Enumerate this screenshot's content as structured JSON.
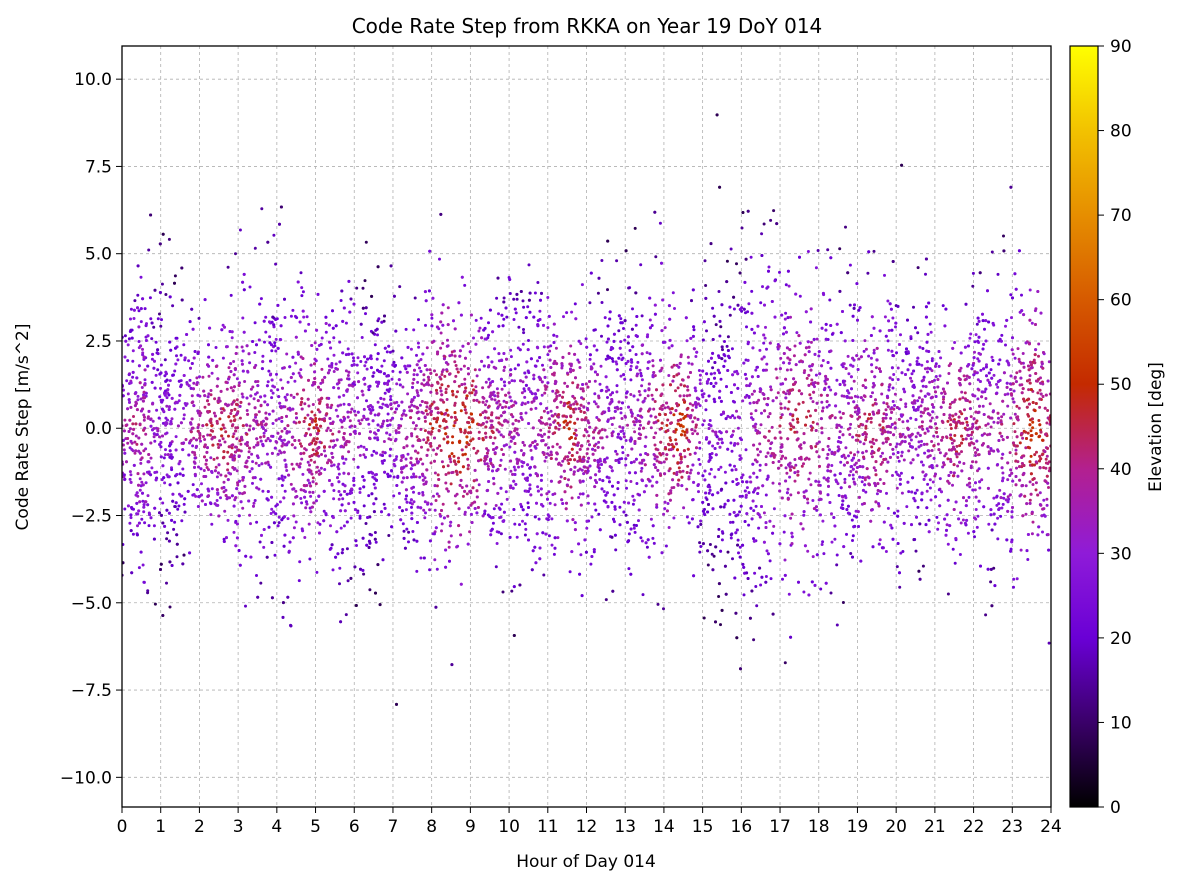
{
  "chart_data": {
    "type": "scatter",
    "title": "Code Rate Step from RKKA on Year 19 DoY 014",
    "xlabel": "Hour of Day 014",
    "ylabel": "Code Rate Step [m/s^2]",
    "xlim": [
      0,
      24
    ],
    "ylim": [
      -10.85,
      10.95
    ],
    "x_ticks": [
      0,
      1,
      2,
      3,
      4,
      5,
      6,
      7,
      8,
      9,
      10,
      11,
      12,
      13,
      14,
      15,
      16,
      17,
      18,
      19,
      20,
      21,
      22,
      23,
      24
    ],
    "x_tick_labels": [
      "0",
      "1",
      "2",
      "3",
      "4",
      "5",
      "6",
      "7",
      "8",
      "9",
      "10",
      "11",
      "12",
      "13",
      "14",
      "15",
      "16",
      "17",
      "18",
      "19",
      "20",
      "21",
      "22",
      "23",
      "24"
    ],
    "y_ticks": [
      -10,
      -7.5,
      -5,
      -2.5,
      0,
      2.5,
      5,
      7.5,
      10
    ],
    "y_tick_labels": [
      "−10.0",
      "−7.5",
      "−5.0",
      "−2.5",
      "0.0",
      "2.5",
      "5.0",
      "7.5",
      "10.0"
    ],
    "grid": true,
    "colorbar": {
      "label": "Elevation [deg]",
      "range": [
        0,
        90
      ],
      "ticks": [
        0,
        10,
        20,
        30,
        40,
        50,
        60,
        70,
        80,
        90
      ],
      "tick_labels": [
        "0",
        "10",
        "20",
        "30",
        "40",
        "50",
        "60",
        "70",
        "80",
        "90"
      ],
      "colormap": "gnuplot",
      "colors": [
        "#000000",
        "#3a0069",
        "#6a00d6",
        "#8f1bd8",
        "#b3208f",
        "#c42a00",
        "#d65a00",
        "#e68e00",
        "#f2c200",
        "#ffff00"
      ]
    },
    "density_profile": {
      "description_hours": [
        0,
        0.5,
        1,
        1.5,
        2,
        2.5,
        3,
        3.5,
        4,
        4.5,
        5,
        5.5,
        6,
        6.5,
        7,
        7.5,
        8,
        8.5,
        9,
        9.5,
        10,
        10.5,
        11,
        11.5,
        12,
        12.5,
        13,
        13.5,
        14,
        14.5,
        15,
        15.5,
        16,
        16.5,
        17,
        17.5,
        18,
        18.5,
        19,
        19.5,
        20,
        20.5,
        21,
        21.5,
        22,
        22.5,
        23,
        23.5,
        24
      ],
      "spread": [
        4.0,
        4.8,
        5.0,
        4.5,
        3.6,
        3.4,
        4.2,
        5.2,
        5.8,
        5.2,
        3.4,
        4.6,
        5.0,
        4.8,
        4.0,
        3.6,
        4.4,
        4.8,
        3.6,
        3.4,
        4.6,
        5.0,
        4.6,
        3.4,
        4.2,
        4.6,
        5.0,
        4.8,
        4.6,
        2.2,
        5.2,
        5.8,
        6.2,
        6.0,
        5.6,
        5.2,
        5.4,
        5.0,
        4.2,
        4.4,
        4.8,
        4.4,
        3.8,
        3.6,
        4.0,
        4.6,
        5.0,
        4.0,
        4.0
      ],
      "elevation_peak": [
        35,
        40,
        30,
        32,
        40,
        45,
        42,
        38,
        32,
        40,
        46,
        38,
        35,
        30,
        34,
        40,
        44,
        48,
        50,
        42,
        38,
        34,
        40,
        48,
        40,
        34,
        32,
        38,
        44,
        52,
        30,
        28,
        32,
        36,
        40,
        44,
        40,
        36,
        40,
        44,
        36,
        34,
        40,
        46,
        40,
        36,
        40,
        50,
        44
      ]
    }
  }
}
